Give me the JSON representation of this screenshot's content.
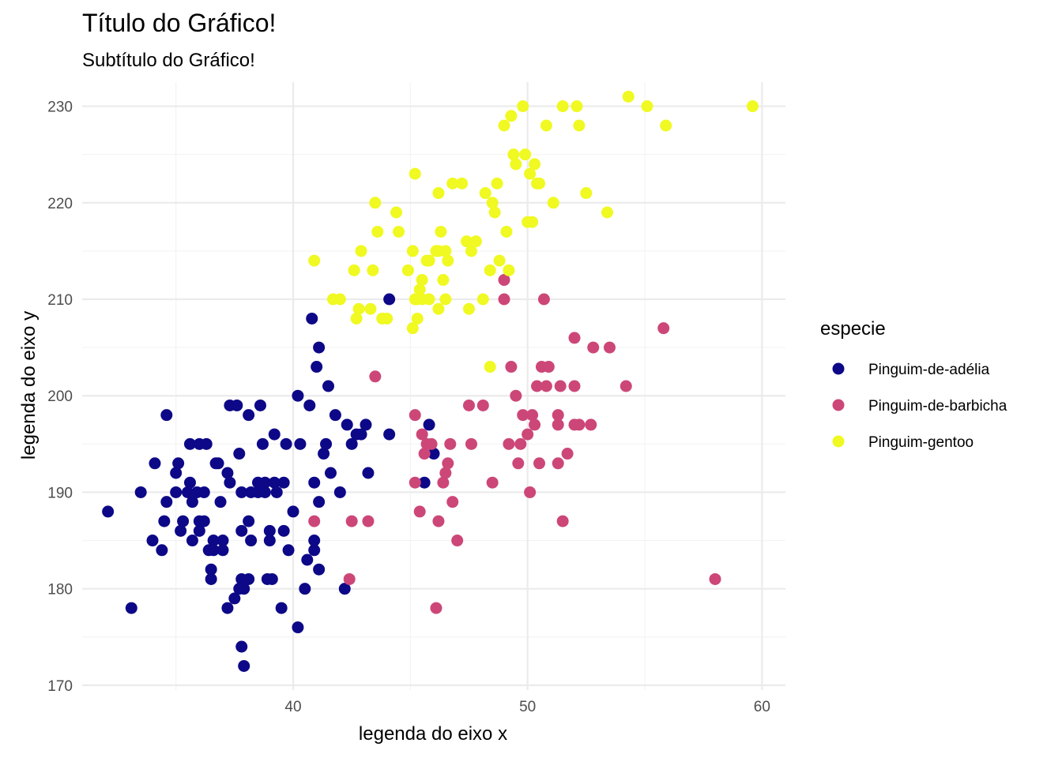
{
  "chart_data": {
    "type": "scatter",
    "title": "Título do Gráfico!",
    "subtitle": "Subtítulo do Gráfico!",
    "xlabel": "legenda do eixo x",
    "ylabel": "legenda do eixo y",
    "xlim": [
      31.0,
      61.0
    ],
    "ylim": [
      169.5,
      232.5
    ],
    "x_ticks": [
      40,
      50,
      60
    ],
    "y_ticks": [
      170,
      180,
      190,
      200,
      210,
      220,
      230
    ],
    "grid": true,
    "legend": {
      "title": "especie",
      "placement": "right",
      "entries": [
        "Pinguim-de-adélia",
        "Pinguim-de-barbicha",
        "Pinguim-gentoo"
      ]
    },
    "series": [
      {
        "name": "Pinguim-de-adélia",
        "color": "#0d0887",
        "points": [
          [
            32.1,
            188
          ],
          [
            33.1,
            178
          ],
          [
            33.5,
            190
          ],
          [
            34.0,
            185
          ],
          [
            34.1,
            193
          ],
          [
            34.4,
            184
          ],
          [
            34.5,
            187
          ],
          [
            34.6,
            189
          ],
          [
            34.6,
            198
          ],
          [
            35.0,
            192
          ],
          [
            35.0,
            190
          ],
          [
            35.1,
            193
          ],
          [
            35.2,
            186
          ],
          [
            35.3,
            187
          ],
          [
            35.5,
            190
          ],
          [
            35.6,
            195
          ],
          [
            35.6,
            191
          ],
          [
            35.7,
            185
          ],
          [
            35.7,
            189
          ],
          [
            35.9,
            190
          ],
          [
            36.0,
            195
          ],
          [
            36.0,
            186
          ],
          [
            36.0,
            187
          ],
          [
            36.2,
            187
          ],
          [
            36.2,
            190
          ],
          [
            36.3,
            195
          ],
          [
            36.4,
            184
          ],
          [
            36.5,
            182
          ],
          [
            36.5,
            181
          ],
          [
            36.6,
            185
          ],
          [
            36.6,
            184
          ],
          [
            36.7,
            193
          ],
          [
            36.8,
            193
          ],
          [
            36.9,
            189
          ],
          [
            37.0,
            185
          ],
          [
            37.0,
            184
          ],
          [
            37.2,
            178
          ],
          [
            37.2,
            192
          ],
          [
            37.3,
            191
          ],
          [
            37.3,
            199
          ],
          [
            37.5,
            179
          ],
          [
            37.6,
            199
          ],
          [
            37.7,
            194
          ],
          [
            37.7,
            180
          ],
          [
            37.8,
            190
          ],
          [
            37.8,
            181
          ],
          [
            37.8,
            174
          ],
          [
            37.8,
            186
          ],
          [
            37.9,
            172
          ],
          [
            37.9,
            180
          ],
          [
            38.1,
            187
          ],
          [
            38.1,
            181
          ],
          [
            38.1,
            198
          ],
          [
            38.2,
            190
          ],
          [
            38.2,
            185
          ],
          [
            38.5,
            190
          ],
          [
            38.5,
            191
          ],
          [
            38.6,
            199
          ],
          [
            38.7,
            195
          ],
          [
            38.8,
            191
          ],
          [
            38.8,
            190
          ],
          [
            38.9,
            181
          ],
          [
            39.0,
            185
          ],
          [
            39.0,
            186
          ],
          [
            39.1,
            181
          ],
          [
            39.2,
            196
          ],
          [
            39.2,
            191
          ],
          [
            39.3,
            190
          ],
          [
            39.5,
            178
          ],
          [
            39.6,
            186
          ],
          [
            39.6,
            191
          ],
          [
            39.7,
            195
          ],
          [
            39.8,
            184
          ],
          [
            40.0,
            188
          ],
          [
            40.2,
            176
          ],
          [
            40.2,
            200
          ],
          [
            40.3,
            195
          ],
          [
            40.5,
            180
          ],
          [
            40.6,
            183
          ],
          [
            40.7,
            199
          ],
          [
            40.8,
            208
          ],
          [
            40.9,
            184
          ],
          [
            40.9,
            185
          ],
          [
            40.9,
            191
          ],
          [
            41.0,
            203
          ],
          [
            41.1,
            205
          ],
          [
            41.1,
            182
          ],
          [
            41.1,
            189
          ],
          [
            41.3,
            194
          ],
          [
            41.4,
            195
          ],
          [
            41.5,
            201
          ],
          [
            41.6,
            192
          ],
          [
            41.8,
            198
          ],
          [
            42.0,
            190
          ],
          [
            42.2,
            180
          ],
          [
            42.3,
            197
          ],
          [
            42.5,
            195
          ],
          [
            42.7,
            196
          ],
          [
            42.9,
            196
          ],
          [
            43.1,
            197
          ],
          [
            43.2,
            192
          ],
          [
            44.1,
            196
          ],
          [
            44.1,
            210
          ],
          [
            45.8,
            197
          ],
          [
            45.6,
            191
          ],
          [
            46.0,
            194
          ]
        ]
      },
      {
        "name": "Pinguim-de-barbicha",
        "color": "#cc4778",
        "points": [
          [
            40.9,
            187
          ],
          [
            42.4,
            181
          ],
          [
            42.5,
            187
          ],
          [
            43.2,
            187
          ],
          [
            43.5,
            202
          ],
          [
            45.2,
            198
          ],
          [
            45.2,
            191
          ],
          [
            45.4,
            188
          ],
          [
            45.5,
            196
          ],
          [
            45.6,
            194
          ],
          [
            45.7,
            195
          ],
          [
            45.9,
            195
          ],
          [
            46.1,
            178
          ],
          [
            46.2,
            187
          ],
          [
            46.4,
            191
          ],
          [
            46.5,
            192
          ],
          [
            46.6,
            193
          ],
          [
            46.7,
            195
          ],
          [
            46.8,
            189
          ],
          [
            47.0,
            185
          ],
          [
            47.5,
            199
          ],
          [
            47.6,
            195
          ],
          [
            48.1,
            199
          ],
          [
            48.5,
            191
          ],
          [
            49.0,
            212
          ],
          [
            49.0,
            210
          ],
          [
            49.2,
            195
          ],
          [
            49.3,
            203
          ],
          [
            49.5,
            200
          ],
          [
            49.6,
            193
          ],
          [
            49.7,
            195
          ],
          [
            49.8,
            198
          ],
          [
            50.0,
            196
          ],
          [
            50.1,
            190
          ],
          [
            50.2,
            198
          ],
          [
            50.3,
            197
          ],
          [
            50.4,
            201
          ],
          [
            50.5,
            193
          ],
          [
            50.6,
            203
          ],
          [
            50.7,
            210
          ],
          [
            50.8,
            201
          ],
          [
            50.9,
            203
          ],
          [
            51.3,
            197
          ],
          [
            51.3,
            198
          ],
          [
            51.3,
            193
          ],
          [
            51.4,
            201
          ],
          [
            51.5,
            187
          ],
          [
            51.7,
            194
          ],
          [
            52.0,
            201
          ],
          [
            52.0,
            206
          ],
          [
            52.0,
            197
          ],
          [
            52.2,
            197
          ],
          [
            52.7,
            197
          ],
          [
            52.8,
            205
          ],
          [
            53.5,
            205
          ],
          [
            54.2,
            201
          ],
          [
            55.8,
            207
          ],
          [
            58.0,
            181
          ]
        ]
      },
      {
        "name": "Pinguim-gentoo",
        "color": "#f0f921",
        "points": [
          [
            40.9,
            214
          ],
          [
            41.7,
            210
          ],
          [
            42.0,
            210
          ],
          [
            42.6,
            213
          ],
          [
            42.7,
            208
          ],
          [
            42.8,
            209
          ],
          [
            42.9,
            215
          ],
          [
            43.3,
            209
          ],
          [
            43.4,
            213
          ],
          [
            43.5,
            220
          ],
          [
            43.6,
            217
          ],
          [
            43.8,
            208
          ],
          [
            44.0,
            208
          ],
          [
            44.4,
            219
          ],
          [
            44.5,
            217
          ],
          [
            44.9,
            213
          ],
          [
            45.1,
            215
          ],
          [
            45.2,
            210
          ],
          [
            45.2,
            223
          ],
          [
            45.3,
            210
          ],
          [
            45.4,
            211
          ],
          [
            45.5,
            212
          ],
          [
            45.5,
            210
          ],
          [
            45.7,
            214
          ],
          [
            45.8,
            214
          ],
          [
            45.8,
            210
          ],
          [
            46.1,
            215
          ],
          [
            46.2,
            221
          ],
          [
            46.2,
            215
          ],
          [
            46.3,
            217
          ],
          [
            46.4,
            212
          ],
          [
            46.5,
            215
          ],
          [
            46.5,
            210
          ],
          [
            46.6,
            214
          ],
          [
            46.8,
            222
          ],
          [
            47.2,
            222
          ],
          [
            47.4,
            216
          ],
          [
            47.5,
            209
          ],
          [
            47.6,
            215
          ],
          [
            47.8,
            216
          ],
          [
            48.1,
            210
          ],
          [
            48.2,
            221
          ],
          [
            48.4,
            213
          ],
          [
            48.5,
            220
          ],
          [
            48.6,
            219
          ],
          [
            48.7,
            222
          ],
          [
            48.8,
            214
          ],
          [
            49.0,
            228
          ],
          [
            49.1,
            217
          ],
          [
            49.2,
            213
          ],
          [
            49.3,
            229
          ],
          [
            49.4,
            225
          ],
          [
            49.5,
            224
          ],
          [
            49.8,
            230
          ],
          [
            49.9,
            225
          ],
          [
            50.0,
            218
          ],
          [
            50.1,
            223
          ],
          [
            50.2,
            218
          ],
          [
            50.3,
            224
          ],
          [
            50.4,
            222
          ],
          [
            50.5,
            222
          ],
          [
            50.8,
            228
          ],
          [
            51.1,
            220
          ],
          [
            51.5,
            230
          ],
          [
            52.1,
            230
          ],
          [
            52.2,
            228
          ],
          [
            52.5,
            221
          ],
          [
            53.4,
            219
          ],
          [
            54.3,
            231
          ],
          [
            55.1,
            230
          ],
          [
            55.9,
            228
          ],
          [
            59.6,
            230
          ],
          [
            48.4,
            203
          ],
          [
            45.1,
            207
          ],
          [
            45.3,
            208
          ],
          [
            46.2,
            209
          ]
        ]
      }
    ]
  }
}
